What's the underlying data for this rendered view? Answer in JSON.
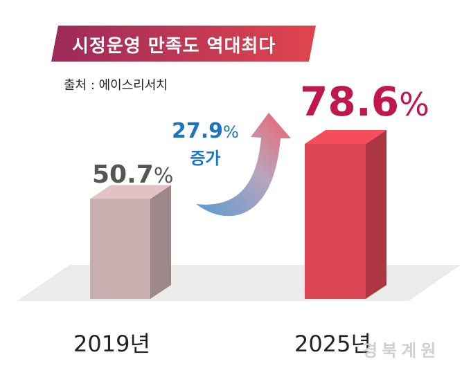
{
  "title": "시정운영 만족도 역대최다",
  "source": "출처 : 에이스리서치",
  "colors": {
    "banner_start": "#9c2a5a",
    "banner_end": "#e0454e",
    "bar_2019": "#c9aeb0",
    "bar_2025": "#dc4553",
    "increase_text": "#1d74bf",
    "value_2025": "#c0184a"
  },
  "increase": {
    "value": "27.9",
    "unit": "%",
    "label": "증가"
  },
  "watermark": "경북계원",
  "chart_data": {
    "type": "bar",
    "categories": [
      "2019년",
      "2025년"
    ],
    "values": [
      50.7,
      78.6
    ],
    "value_labels": [
      "50.7",
      "78.6"
    ],
    "unit": "%",
    "title": "시정운영 만족도 역대최다"
  }
}
